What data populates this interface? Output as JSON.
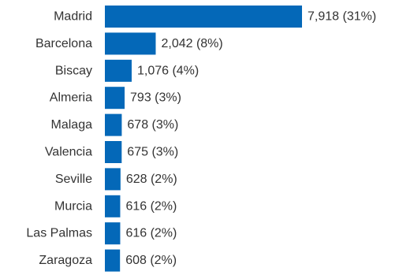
{
  "chart_data": {
    "type": "bar",
    "orientation": "horizontal",
    "categories": [
      "Madrid",
      "Barcelona",
      "Biscay",
      "Almeria",
      "Malaga",
      "Valencia",
      "Seville",
      "Murcia",
      "Las Palmas",
      "Zaragoza"
    ],
    "values": [
      7918,
      2042,
      1076,
      793,
      678,
      675,
      628,
      616,
      616,
      608
    ],
    "value_labels": [
      "7,918 (31%)",
      "2,042 (8%)",
      "1,076 (4%)",
      "793 (3%)",
      "678 (3%)",
      "675 (3%)",
      "628 (2%)",
      "616 (2%)",
      "616 (2%)",
      "608 (2%)"
    ],
    "title": "",
    "xlabel": "",
    "ylabel": "",
    "grid": false,
    "legend": "none",
    "bar_color": "#0468b8"
  }
}
